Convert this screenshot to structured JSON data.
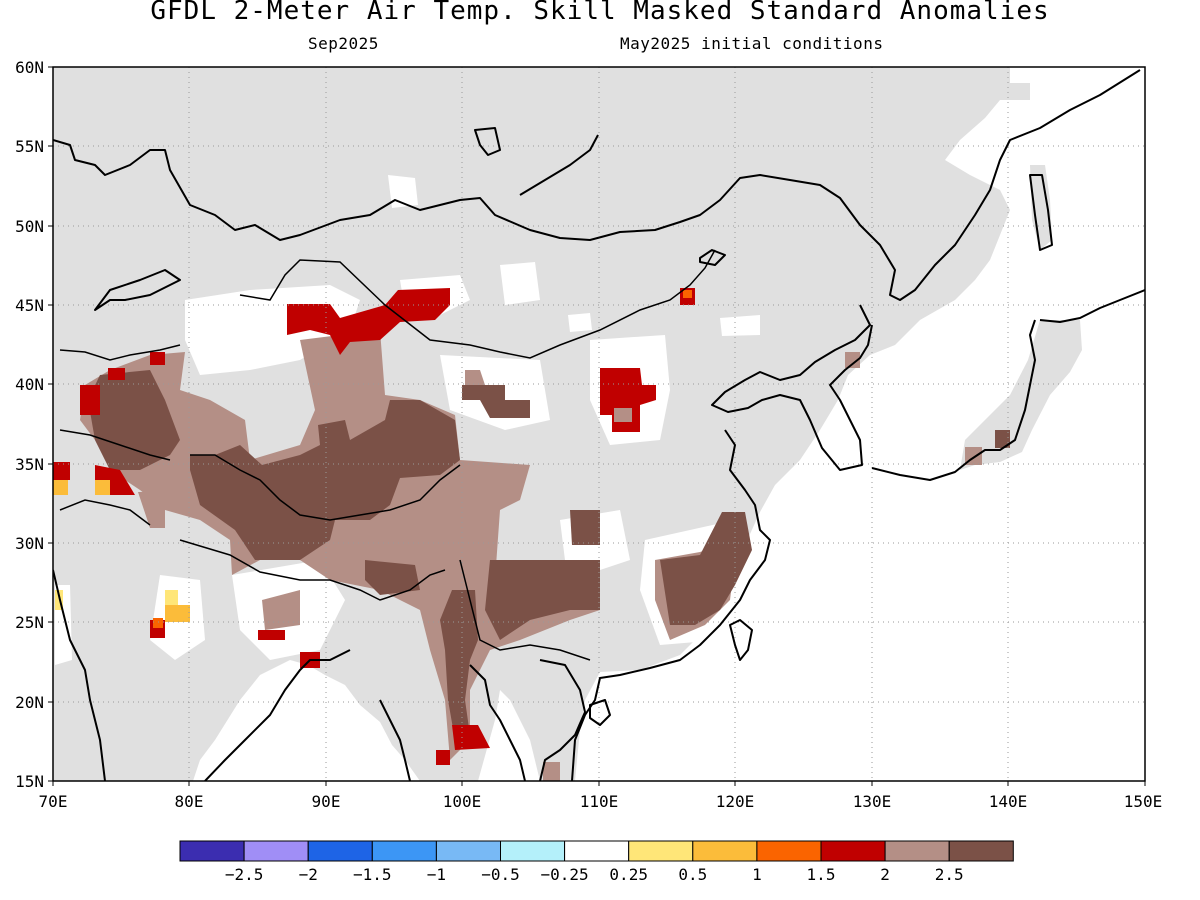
{
  "header": {
    "title": "GFDL 2-Meter Air Temp. Skill Masked Standard Anomalies",
    "subtitle_left": "Sep2025",
    "subtitle_right": "May2025 initial conditions"
  },
  "map": {
    "lat_labels": [
      "60N",
      "55N",
      "50N",
      "45N",
      "40N",
      "35N",
      "30N",
      "25N",
      "20N",
      "15N"
    ],
    "lon_labels": [
      "70E",
      "80E",
      "90E",
      "100E",
      "110E",
      "120E",
      "130E",
      "140E",
      "150E"
    ],
    "colors": {
      "land_masked": "#e0e0e0",
      "ocean": "#ffffff",
      "frame": "#000000",
      "grid": "#9a9a9a"
    },
    "anomaly_regions": [
      {
        "region": "Tibetan Plateau / western China",
        "value": 2.5,
        "color": "#b48f86"
      },
      {
        "region": "Central Tibet core",
        "value": 3.0,
        "color": "#7b5147"
      },
      {
        "region": "Southern China / Yunnan",
        "value": 3.0,
        "color": "#7b5147"
      },
      {
        "region": "Southeast China coast",
        "value": 3.0,
        "color": "#7b5147"
      },
      {
        "region": "Western Mongolia / Xinjiang north",
        "value": 2.0,
        "color": "#c00000"
      },
      {
        "region": "Inner Mongolia / Shanxi",
        "value": 2.0,
        "color": "#c00000"
      },
      {
        "region": "Pamir / Afghanistan",
        "value": 2.0,
        "color": "#c00000"
      },
      {
        "region": "Northern India spots",
        "value": 0.75,
        "color": "#fbbc3a"
      }
    ]
  },
  "colorbar": {
    "colors": [
      "#3b2db0",
      "#a08ef6",
      "#1e64e6",
      "#3c96f5",
      "#78b9f5",
      "#b4f0fa",
      "#ffffff",
      "#ffe678",
      "#fbbc3a",
      "#fa6400",
      "#c00000",
      "#b48f86",
      "#7b5147"
    ],
    "labels": [
      "−2.5",
      "−2",
      "−1.5",
      "−1",
      "−0.5",
      "−0.25",
      "0.25",
      "0.5",
      "1",
      "1.5",
      "2",
      "2.5"
    ]
  }
}
